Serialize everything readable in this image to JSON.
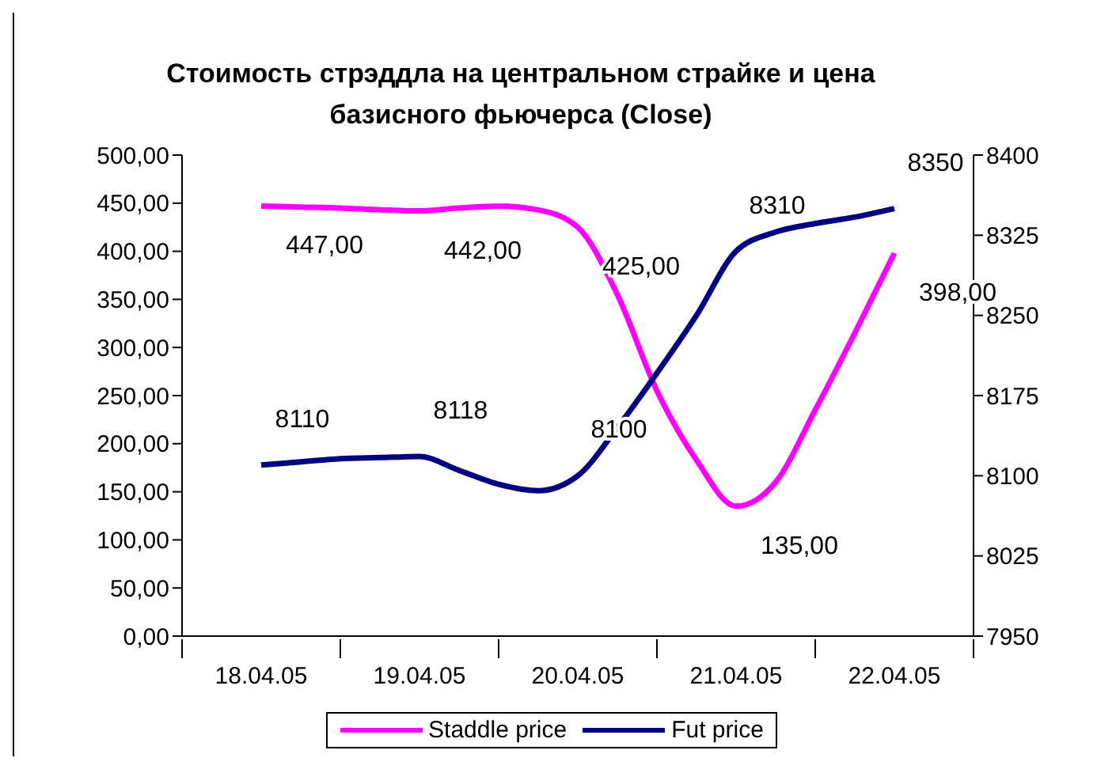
{
  "chart_data": {
    "type": "line",
    "title": "Стоимость стрэддла на центральном страйке и цена базисного фьючерса (Close)",
    "categories": [
      "18.04.05",
      null,
      null,
      null,
      "19.04.05",
      null,
      null,
      null,
      "20.04.05",
      null,
      null,
      null,
      "21.04.05",
      null,
      null,
      null,
      "22.04.05"
    ],
    "ylim": [
      0,
      500
    ],
    "yticks": [
      {
        "value": 0,
        "label": "0,00"
      },
      {
        "value": 50,
        "label": "50,00"
      },
      {
        "value": 100,
        "label": "100,00"
      },
      {
        "value": 150,
        "label": "150,00"
      },
      {
        "value": 200,
        "label": "200,00"
      },
      {
        "value": 250,
        "label": "250,00"
      },
      {
        "value": 300,
        "label": "300,00"
      },
      {
        "value": 350,
        "label": "350,00"
      },
      {
        "value": 400,
        "label": "400,00"
      },
      {
        "value": 450,
        "label": "450,00"
      },
      {
        "value": 500,
        "label": "500,00"
      }
    ],
    "y2lim": [
      7950,
      8400
    ],
    "y2ticks": [
      7950,
      8025,
      8100,
      8175,
      8250,
      8325,
      8400
    ],
    "marker": "none",
    "legend": "bottom",
    "series": [
      {
        "name": "Staddle price",
        "color": "#ff00ff",
        "values": [
          447,
          446,
          445,
          443,
          442,
          445,
          447,
          443,
          425,
          355,
          255,
          183,
          135,
          160,
          235,
          315,
          398
        ],
        "value_labels": [
          "447,00",
          null,
          null,
          null,
          "442,00",
          null,
          null,
          null,
          "425,00",
          null,
          null,
          null,
          "135,00",
          null,
          null,
          null,
          "398,00"
        ]
      },
      {
        "name": "Fut price",
        "color": "#000080",
        "axis": "y2",
        "values": [
          8110,
          8113,
          8116,
          8117,
          8118,
          8105,
          8092,
          8086,
          8100,
          8145,
          8196,
          8250,
          8310,
          8328,
          8336,
          8342,
          8350
        ],
        "value_labels": [
          "8110",
          null,
          null,
          null,
          "8118",
          null,
          null,
          null,
          "8100",
          null,
          null,
          null,
          "8310",
          null,
          null,
          null,
          "8350"
        ]
      }
    ]
  }
}
